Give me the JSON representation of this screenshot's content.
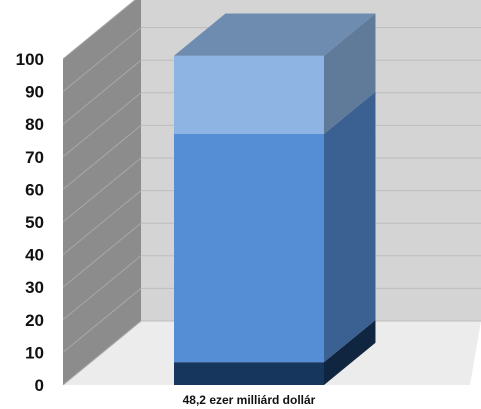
{
  "chart_data": {
    "type": "bar",
    "stacked": true,
    "three_d": true,
    "categories": [
      "48,2 ezer milliárd dollár"
    ],
    "series": [
      {
        "values": [
          7
        ],
        "color": "#17365d"
      },
      {
        "values": [
          70
        ],
        "color": "#558ed5"
      },
      {
        "values": [
          24
        ],
        "color": "#8db4e2"
      }
    ],
    "ylim": [
      0,
      100
    ],
    "y_ticks": [
      "0",
      "10",
      "20",
      "30",
      "40",
      "50",
      "60",
      "70",
      "80",
      "90",
      "100"
    ],
    "grid": true,
    "legend": "none",
    "title": "",
    "xlabel": "",
    "ylabel": ""
  }
}
